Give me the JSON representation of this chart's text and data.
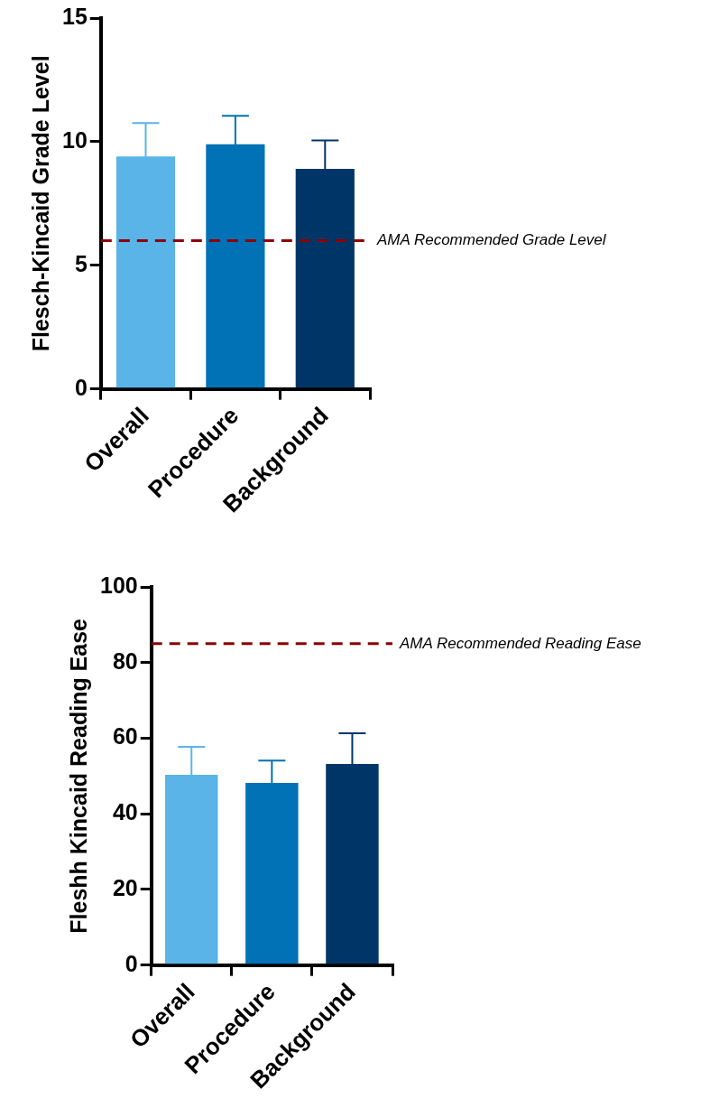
{
  "chart_data": [
    {
      "type": "bar",
      "categories": [
        "Overall",
        "Procedure",
        "Background"
      ],
      "values": [
        9.4,
        9.9,
        8.9
      ],
      "colors": [
        "#5ab4e8",
        "#0072b5",
        "#003667"
      ],
      "errors": [
        1.35,
        1.15,
        1.15
      ],
      "ylabel": "Flesch-Kincaid Grade Level",
      "ylim": [
        0,
        15
      ],
      "yticks": [
        0,
        5,
        10,
        15
      ],
      "grid": false,
      "legend": false,
      "ref_lines": [
        {
          "axis": "y",
          "value": 6,
          "label": "AMA Recommended Grade Level",
          "color": "#8b0000",
          "line_style": "dashed"
        }
      ]
    },
    {
      "type": "bar",
      "categories": [
        "Overall",
        "Procedure",
        "Background"
      ],
      "values": [
        50.3,
        48.2,
        53.2
      ],
      "colors": [
        "#5ab4e8",
        "#0072b5",
        "#003667"
      ],
      "errors": [
        7.4,
        5.9,
        8.1
      ],
      "ylabel": "Fleshh Kincaid Reading Ease",
      "ylim": [
        0,
        100
      ],
      "yticks": [
        0,
        20,
        40,
        60,
        80,
        100
      ],
      "grid": false,
      "legend": false,
      "ref_lines": [
        {
          "axis": "y",
          "value": 85,
          "label": "AMA Recommended Reading Ease",
          "color": "#8b0000",
          "line_style": "dashed"
        }
      ]
    }
  ]
}
